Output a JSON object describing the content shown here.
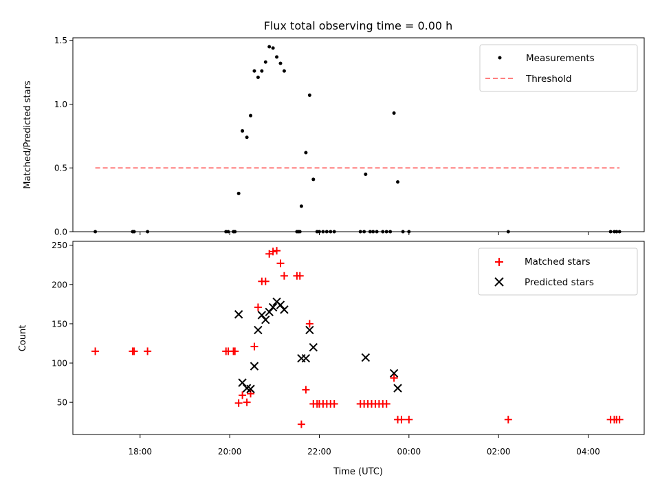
{
  "chart_data": [
    {
      "type": "scatter",
      "title": "Flux total observing time = 0.00 h",
      "xlabel": "",
      "ylabel": "Matched/Predicted stars",
      "xlim": [
        "16:30",
        "05:15"
      ],
      "ylim": [
        0,
        1.52
      ],
      "yticks": [
        "0.0",
        "0.5",
        "1.0",
        "1.5"
      ],
      "legend_position": "top-right",
      "series": [
        {
          "name": "Measurements",
          "color": "#000000",
          "marker": "dot",
          "points": [
            [
              "17:00",
              0.0
            ],
            [
              "17:50",
              0.0
            ],
            [
              "17:52",
              0.0
            ],
            [
              "18:10",
              0.0
            ],
            [
              "19:55",
              0.0
            ],
            [
              "19:58",
              0.0
            ],
            [
              "20:05",
              0.0
            ],
            [
              "20:07",
              0.0
            ],
            [
              "20:12",
              0.3
            ],
            [
              "20:17",
              0.79
            ],
            [
              "20:23",
              0.74
            ],
            [
              "20:28",
              0.91
            ],
            [
              "20:33",
              1.26
            ],
            [
              "20:38",
              1.21
            ],
            [
              "20:43",
              1.26
            ],
            [
              "20:48",
              1.33
            ],
            [
              "20:53",
              1.45
            ],
            [
              "20:58",
              1.44
            ],
            [
              "21:03",
              1.37
            ],
            [
              "21:08",
              1.32
            ],
            [
              "21:13",
              1.26
            ],
            [
              "21:30",
              0.0
            ],
            [
              "21:32",
              0.0
            ],
            [
              "21:34",
              0.0
            ],
            [
              "21:36",
              0.2
            ],
            [
              "21:42",
              0.62
            ],
            [
              "21:47",
              1.07
            ],
            [
              "21:52",
              0.41
            ],
            [
              "21:57",
              0.0
            ],
            [
              "22:00",
              0.0
            ],
            [
              "22:05",
              0.0
            ],
            [
              "22:10",
              0.0
            ],
            [
              "22:15",
              0.0
            ],
            [
              "22:20",
              0.0
            ],
            [
              "22:55",
              0.0
            ],
            [
              "23:00",
              0.0
            ],
            [
              "23:02",
              0.45
            ],
            [
              "23:08",
              0.0
            ],
            [
              "23:12",
              0.0
            ],
            [
              "23:17",
              0.0
            ],
            [
              "23:25",
              0.0
            ],
            [
              "23:30",
              0.0
            ],
            [
              "23:35",
              0.0
            ],
            [
              "23:40",
              0.93
            ],
            [
              "23:45",
              0.39
            ],
            [
              "23:52",
              0.0
            ],
            [
              "00:00",
              0.0
            ],
            [
              "02:13",
              0.0
            ],
            [
              "04:30",
              0.0
            ],
            [
              "04:35",
              0.0
            ],
            [
              "04:38",
              0.0
            ],
            [
              "04:42",
              0.0
            ]
          ]
        },
        {
          "name": "Threshold",
          "color": "#ff7f7f",
          "marker": "dashed-line",
          "points": [
            [
              "17:00",
              0.5
            ],
            [
              "04:42",
              0.5
            ]
          ]
        }
      ]
    },
    {
      "type": "scatter",
      "title": "",
      "xlabel": "Time (UTC)",
      "ylabel": "Count",
      "xlim": [
        "16:30",
        "05:15"
      ],
      "ylim": [
        9,
        255
      ],
      "xticks": [
        "18:00",
        "20:00",
        "22:00",
        "00:00",
        "02:00",
        "04:00"
      ],
      "yticks": [
        "50",
        "100",
        "150",
        "200",
        "250"
      ],
      "legend_position": "top-right",
      "series": [
        {
          "name": "Matched stars",
          "color": "#ff0000",
          "marker": "plus",
          "points": [
            [
              "17:00",
              115
            ],
            [
              "17:50",
              115
            ],
            [
              "17:52",
              115
            ],
            [
              "18:10",
              115
            ],
            [
              "19:55",
              115
            ],
            [
              "19:58",
              115
            ],
            [
              "20:05",
              115
            ],
            [
              "20:07",
              115
            ],
            [
              "20:12",
              49
            ],
            [
              "20:17",
              59
            ],
            [
              "20:23",
              50
            ],
            [
              "20:28",
              61
            ],
            [
              "20:33",
              121
            ],
            [
              "20:38",
              171
            ],
            [
              "20:43",
              204
            ],
            [
              "20:48",
              204
            ],
            [
              "20:53",
              239
            ],
            [
              "20:58",
              242
            ],
            [
              "21:03",
              243
            ],
            [
              "21:08",
              227
            ],
            [
              "21:13",
              211
            ],
            [
              "21:30",
              211
            ],
            [
              "21:34",
              211
            ],
            [
              "21:36",
              22
            ],
            [
              "21:42",
              66
            ],
            [
              "21:47",
              150
            ],
            [
              "21:52",
              48
            ],
            [
              "21:57",
              48
            ],
            [
              "22:00",
              48
            ],
            [
              "22:05",
              48
            ],
            [
              "22:10",
              48
            ],
            [
              "22:15",
              48
            ],
            [
              "22:20",
              48
            ],
            [
              "22:55",
              48
            ],
            [
              "23:00",
              48
            ],
            [
              "23:05",
              48
            ],
            [
              "23:10",
              48
            ],
            [
              "23:15",
              48
            ],
            [
              "23:20",
              48
            ],
            [
              "23:25",
              48
            ],
            [
              "23:30",
              48
            ],
            [
              "23:40",
              81
            ],
            [
              "23:45",
              28
            ],
            [
              "23:50",
              28
            ],
            [
              "00:00",
              28
            ],
            [
              "02:13",
              28
            ],
            [
              "04:30",
              28
            ],
            [
              "04:35",
              28
            ],
            [
              "04:38",
              28
            ],
            [
              "04:42",
              28
            ]
          ]
        },
        {
          "name": "Predicted stars",
          "color": "#000000",
          "marker": "x",
          "points": [
            [
              "20:12",
              162
            ],
            [
              "20:17",
              75
            ],
            [
              "20:23",
              68
            ],
            [
              "20:28",
              67
            ],
            [
              "20:33",
              96
            ],
            [
              "20:38",
              142
            ],
            [
              "20:43",
              161
            ],
            [
              "20:48",
              155
            ],
            [
              "20:53",
              165
            ],
            [
              "20:58",
              171
            ],
            [
              "21:03",
              178
            ],
            [
              "21:08",
              174
            ],
            [
              "21:13",
              168
            ],
            [
              "21:36",
              106
            ],
            [
              "21:42",
              106
            ],
            [
              "21:47",
              142
            ],
            [
              "21:52",
              120
            ],
            [
              "23:02",
              107
            ],
            [
              "23:40",
              87
            ],
            [
              "23:45",
              68
            ]
          ]
        }
      ]
    }
  ]
}
